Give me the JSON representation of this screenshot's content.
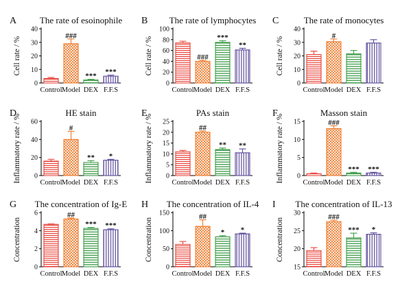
{
  "colors": {
    "Control": "#e8443a",
    "Model": "#f07a2a",
    "DEX": "#3a9a45",
    "F.F.S": "#5a4a9a",
    "axis": "#000000",
    "text": "#111111"
  },
  "chart_data": [
    {
      "letter": "A",
      "type": "bar",
      "title": "The rate of esoinophile",
      "ylabel": "Cell rate / %",
      "categories": [
        "Control",
        "Model",
        "DEX",
        "F.F.S"
      ],
      "values": [
        3.3,
        29,
        2.2,
        5
      ],
      "errors": [
        0.8,
        3.5,
        0.5,
        0.8
      ],
      "significance": [
        "",
        "###",
        "***",
        "***"
      ],
      "ylim": [
        0,
        40
      ],
      "yticks": [
        "0",
        "10",
        "20",
        "30",
        "40"
      ],
      "ytick_values": [
        0,
        10,
        20,
        30,
        40
      ]
    },
    {
      "letter": "B",
      "type": "bar",
      "title": "The rate of lymphocytes",
      "ylabel": "Cell rate / %",
      "categories": [
        "Control",
        "Model",
        "DEX",
        "F.F.S"
      ],
      "values": [
        74,
        40,
        75,
        61
      ],
      "errors": [
        3,
        2,
        3,
        3
      ],
      "significance": [
        "",
        "###",
        "***",
        "**"
      ],
      "ylim": [
        0,
        100
      ],
      "yticks": [
        "0",
        "20",
        "40",
        "60",
        "80",
        "100"
      ],
      "ytick_values": [
        0,
        20,
        40,
        60,
        80,
        100
      ]
    },
    {
      "letter": "C",
      "type": "bar",
      "title": "The rate of monocytes",
      "ylabel": "Cell rate / %",
      "categories": [
        "Control",
        "Model",
        "DEX",
        "F.F.S"
      ],
      "values": [
        21,
        30.5,
        21.5,
        29.5
      ],
      "errors": [
        2.5,
        2,
        2.5,
        2.5
      ],
      "significance": [
        "",
        "#",
        "",
        ""
      ],
      "ylim": [
        0,
        40
      ],
      "yticks": [
        "0",
        "10",
        "20",
        "30",
        "40"
      ],
      "ytick_values": [
        0,
        10,
        20,
        30,
        40
      ]
    },
    {
      "letter": "D",
      "type": "bar",
      "title": "HE stain",
      "ylabel": "Inflammatory rate / %",
      "categories": [
        "Control",
        "Model",
        "DEX",
        "F.F.S"
      ],
      "values": [
        16,
        40,
        14.5,
        17
      ],
      "errors": [
        2,
        9,
        2,
        1
      ],
      "significance": [
        "",
        "#",
        "**",
        "*"
      ],
      "ylim": [
        0,
        60
      ],
      "yticks": [
        "0",
        "20",
        "40",
        "60"
      ],
      "ytick_values": [
        0,
        20,
        40,
        60
      ]
    },
    {
      "letter": "E",
      "type": "bar",
      "title": "PAs stain",
      "ylabel": "Inflammatory rate / %",
      "categories": [
        "Control",
        "Model",
        "DEX",
        "F.F.S"
      ],
      "values": [
        11,
        20,
        12,
        10.5
      ],
      "errors": [
        0.6,
        0.6,
        0.7,
        1.8
      ],
      "significance": [
        "",
        "##",
        "**",
        "**"
      ],
      "ylim": [
        0,
        25
      ],
      "yticks": [
        "0",
        "5",
        "10",
        "15",
        "20",
        "25"
      ],
      "ytick_values": [
        0,
        5,
        10,
        15,
        20,
        25
      ]
    },
    {
      "letter": "F",
      "type": "bar",
      "title": "Masson stain",
      "ylabel": "Inflammatory rate / %",
      "categories": [
        "Control",
        "Model",
        "DEX",
        "F.F.S"
      ],
      "values": [
        0.5,
        13,
        0.7,
        0.7
      ],
      "errors": [
        0.2,
        0.8,
        0.2,
        0.2
      ],
      "significance": [
        "",
        "###",
        "***",
        "***"
      ],
      "ylim": [
        0,
        15
      ],
      "yticks": [
        "0",
        "5",
        "10",
        "15"
      ],
      "ytick_values": [
        0,
        5,
        10,
        15
      ]
    },
    {
      "letter": "G",
      "type": "bar",
      "title": "The concentration of Ig-E",
      "ylabel": "Concentration",
      "categories": [
        "Control",
        "Model",
        "DEX",
        "F.F.S"
      ],
      "values": [
        4.7,
        5.3,
        4.25,
        4.1
      ],
      "errors": [
        0.05,
        0.1,
        0.1,
        0.1
      ],
      "significance": [
        "",
        "##",
        "***",
        "***"
      ],
      "ylim": [
        0,
        6
      ],
      "yticks": [
        "0",
        "2",
        "4",
        "6"
      ],
      "ytick_values": [
        0,
        2,
        4,
        6
      ]
    },
    {
      "letter": "H",
      "type": "bar",
      "title": "The concentration of IL-4",
      "ylabel": "Concentration",
      "categories": [
        "Control",
        "Model",
        "DEX",
        "F.F.S"
      ],
      "values": [
        62,
        112,
        83,
        91
      ],
      "errors": [
        8,
        18,
        3,
        2
      ],
      "significance": [
        "",
        "##",
        "*",
        "*"
      ],
      "ylim": [
        0,
        150
      ],
      "yticks": [
        "0",
        "50",
        "100",
        "150"
      ],
      "ytick_values": [
        0,
        50,
        100,
        150
      ]
    },
    {
      "letter": "I",
      "type": "bar",
      "title": "The concentration of IL-13",
      "ylabel": "Concentration",
      "categories": [
        "Control",
        "Model",
        "DEX",
        "F.F.S"
      ],
      "values": [
        19.5,
        27.5,
        23,
        24
      ],
      "errors": [
        0.8,
        0.4,
        1.3,
        0.4
      ],
      "significance": [
        "",
        "###",
        "***",
        "*"
      ],
      "ylim": [
        15,
        30
      ],
      "yticks": [
        "15",
        "20",
        "25",
        "30"
      ],
      "ytick_values": [
        15,
        20,
        25,
        30
      ]
    }
  ]
}
